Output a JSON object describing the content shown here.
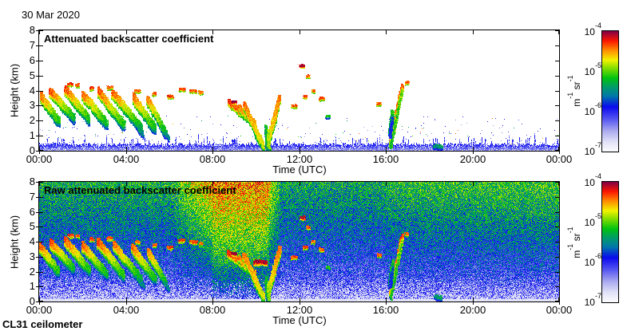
{
  "figure": {
    "date_label": "30 Mar 2020",
    "instrument_label": "CL31 ceilometer"
  },
  "chart_data": {
    "type": "heatmap",
    "panels": [
      {
        "title": "Attenuated backscatter coefficient",
        "kind": "processed"
      },
      {
        "title": "Raw attenuated backscatter coefficient",
        "kind": "raw"
      }
    ],
    "x": {
      "label": "Time (UTC)",
      "range_hours": [
        0,
        24
      ],
      "tick_hours": [
        0,
        4,
        8,
        12,
        16,
        20,
        24
      ],
      "tick_labels": [
        "00:00",
        "04:00",
        "08:00",
        "12:00",
        "16:00",
        "20:00",
        "00:00"
      ]
    },
    "y": {
      "label": "Height (km)",
      "range_km": [
        0,
        8
      ],
      "tick_km": [
        0,
        1,
        2,
        3,
        4,
        5,
        6,
        7,
        8
      ],
      "tick_labels": [
        "0",
        "1",
        "2",
        "3",
        "4",
        "5",
        "6",
        "7",
        "8"
      ]
    },
    "z": {
      "scale": "log10",
      "min": 1e-07,
      "max": 0.0001,
      "unit_parts": [
        [
          "m",
          "-1"
        ],
        [
          "sr",
          "-1"
        ]
      ],
      "tick_base": "10",
      "tick_exponents": [
        "-4",
        "-5",
        "-6",
        "-7"
      ]
    },
    "colormap_stops": [
      [
        0.0,
        "#FBFBFE"
      ],
      [
        0.08,
        "#E2E2F8"
      ],
      [
        0.17,
        "#ABABEF"
      ],
      [
        0.27,
        "#5555F2"
      ],
      [
        0.37,
        "#0A0AEE"
      ],
      [
        0.46,
        "#0077AA"
      ],
      [
        0.53,
        "#00996E"
      ],
      [
        0.61,
        "#00C210"
      ],
      [
        0.69,
        "#7FDC00"
      ],
      [
        0.76,
        "#F2F200"
      ],
      [
        0.84,
        "#FF8C00"
      ],
      [
        0.92,
        "#FB1500"
      ],
      [
        1.0,
        "#7E0045"
      ]
    ],
    "noise_raw": {
      "seed": 20200330,
      "p_low": 0.15,
      "jitter": 0.16,
      "p_high_segments": [
        [
          0,
          6,
          0.58,
          0.58
        ],
        [
          6,
          8,
          0.58,
          0.84
        ],
        [
          8,
          10.5,
          0.85,
          0.85
        ],
        [
          10.5,
          11.2,
          0.85,
          0.54
        ],
        [
          11.2,
          16,
          0.56,
          0.56
        ],
        [
          16,
          24,
          0.6,
          0.63
        ]
      ],
      "gamma_segments": [
        [
          8,
          10.6,
          0.5
        ]
      ],
      "gamma_default": 0.68,
      "speckle_top_km": 1.7,
      "speckle_prob": 0.3,
      "ground_band_km": 0.16,
      "ground_p": 0.05
    },
    "noise_processed": {
      "seed": 987,
      "band_base_km": 0.32,
      "band_rand_km": 0.2,
      "spike_prob": 0.2,
      "spike_km": 0.55,
      "speck_top_km": 2.4,
      "speck_base_prob": 0.005,
      "speck_boost": 0.018
    },
    "features": {
      "streaks": [
        [
          0.05,
          3.6,
          0.9,
          1.9,
          0.3,
          0.88,
          0.62
        ],
        [
          0.5,
          3.9,
          1.6,
          2.1,
          0.32,
          0.9,
          0.6
        ],
        [
          1.2,
          4.05,
          2.3,
          2.0,
          0.34,
          0.9,
          0.62
        ],
        [
          2.0,
          3.7,
          3.1,
          1.75,
          0.32,
          0.88,
          0.6
        ],
        [
          2.7,
          3.95,
          3.9,
          1.65,
          0.34,
          0.9,
          0.62
        ],
        [
          3.4,
          3.75,
          4.7,
          1.45,
          0.34,
          0.88,
          0.58
        ],
        [
          4.3,
          3.55,
          5.35,
          1.4,
          0.3,
          0.88,
          0.6
        ],
        [
          5.0,
          3.35,
          5.85,
          1.1,
          0.28,
          0.86,
          0.58
        ],
        [
          4.55,
          1.5,
          4.78,
          1.0,
          0.18,
          0.56,
          0.5
        ],
        [
          5.78,
          1.15,
          5.95,
          0.8,
          0.16,
          0.54,
          0.48
        ],
        [
          8.7,
          3.25,
          9.65,
          2.1,
          0.22,
          0.92,
          0.8
        ],
        [
          9.9,
          2.0,
          10.05,
          0.8,
          0.16,
          0.85,
          0.74
        ],
        [
          9.2,
          2.9,
          9.55,
          2.2,
          0.22,
          0.86,
          0.8
        ],
        [
          9.45,
          3.0,
          10.33,
          0.25,
          0.28,
          0.86,
          0.74
        ],
        [
          11.1,
          3.5,
          10.5,
          0.2,
          0.26,
          0.86,
          0.74
        ],
        [
          10.45,
          1.6,
          10.52,
          0.15,
          0.12,
          0.6,
          0.55
        ],
        [
          10.56,
          1.3,
          10.6,
          0.1,
          0.1,
          0.72,
          0.7
        ],
        [
          16.2,
          0.35,
          16.75,
          4.3,
          0.2,
          0.8,
          0.88
        ],
        [
          16.18,
          1.1,
          16.3,
          2.5,
          0.28,
          0.56,
          0.62
        ],
        [
          18.25,
          0.3,
          18.55,
          0.2,
          0.14,
          0.52,
          0.55
        ]
      ],
      "dashes": [
        [
          1.35,
          4.4,
          0.18,
          0.1,
          0.9
        ],
        [
          1.7,
          4.35,
          0.12,
          0.09,
          0.88
        ],
        [
          2.35,
          4.15,
          0.15,
          0.09,
          0.9
        ],
        [
          3.15,
          4.2,
          0.2,
          0.1,
          0.88
        ],
        [
          4.45,
          3.95,
          0.15,
          0.09,
          0.86
        ],
        [
          5.25,
          3.75,
          0.12,
          0.09,
          0.88
        ],
        [
          5.95,
          3.6,
          0.2,
          0.1,
          0.9
        ],
        [
          6.45,
          4.05,
          0.25,
          0.11,
          0.9
        ],
        [
          6.95,
          3.95,
          0.3,
          0.11,
          0.88
        ],
        [
          7.4,
          3.85,
          0.12,
          0.09,
          0.86
        ],
        [
          8.9,
          3.2,
          0.15,
          0.1,
          0.99
        ],
        [
          12.05,
          5.6,
          0.18,
          0.1,
          0.97
        ],
        [
          11.65,
          2.95,
          0.2,
          0.1,
          0.88
        ],
        [
          12.2,
          3.6,
          0.15,
          0.1,
          0.9
        ],
        [
          12.35,
          4.95,
          0.12,
          0.09,
          0.88
        ],
        [
          12.6,
          3.95,
          0.12,
          0.09,
          0.86
        ],
        [
          12.95,
          3.45,
          0.15,
          0.1,
          0.88
        ],
        [
          13.25,
          2.25,
          0.12,
          0.09,
          0.62
        ],
        [
          15.62,
          3.1,
          0.15,
          0.1,
          0.88
        ],
        [
          16.9,
          4.5,
          0.1,
          0.08,
          0.86
        ]
      ],
      "raw_only_dashes": [
        [
          9.9,
          2.6,
          0.6,
          0.14,
          0.97
        ]
      ]
    }
  }
}
